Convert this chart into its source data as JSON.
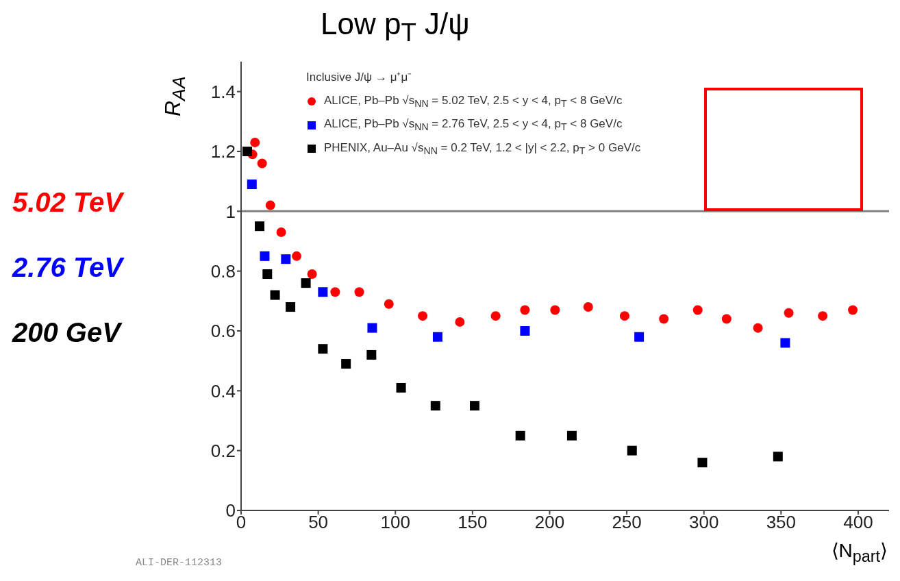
{
  "chart_data": {
    "type": "scatter",
    "title": "Low p$_{T}$ J/ψ",
    "xlabel": "⟨N$_{part}$⟩",
    "ylabel": "R$_{AA}$",
    "legend_title": "Inclusive J/ψ → μ⁺μ⁻",
    "legend": "top left",
    "xlim": [
      0,
      420
    ],
    "ylim": [
      0,
      1.5
    ],
    "xticks": [
      0,
      50,
      100,
      150,
      200,
      250,
      300,
      350,
      400
    ],
    "yticks": [
      0,
      0.2,
      0.4,
      0.6,
      0.8,
      1,
      1.2,
      1.4
    ],
    "series": [
      {
        "name": "ALICE, Pb–Pb √s$_{NN}$ = 5.02 TeV, 2.5 < y < 4, p$_{T}$ < 8 GeV/c",
        "color": "#ff0000",
        "marker": "circle",
        "x": [
          7.4,
          9,
          13.6,
          19,
          26,
          36,
          46,
          61,
          76.6,
          95.8,
          117.7,
          141.8,
          165,
          184,
          203.5,
          225,
          248.6,
          274,
          296,
          314.7,
          335,
          355,
          377,
          396.5
        ],
        "values": [
          1.19,
          1.23,
          1.16,
          1.02,
          0.93,
          0.85,
          0.79,
          0.73,
          0.73,
          0.69,
          0.65,
          0.63,
          0.65,
          0.67,
          0.67,
          0.68,
          0.65,
          0.64,
          0.67,
          0.64,
          0.61,
          0.66,
          0.65,
          0.67
        ]
      },
      {
        "name": "ALICE, Pb–Pb √s$_{NN}$ = 2.76 TeV, 2.5 < y < 4, p$_{T}$ < 8 GeV/c",
        "color": "#0000ff",
        "marker": "square",
        "x": [
          7,
          15.3,
          29,
          53,
          85,
          127.4,
          184,
          258,
          352.7
        ],
        "values": [
          1.09,
          0.85,
          0.84,
          0.73,
          0.61,
          0.58,
          0.6,
          0.58,
          0.56
        ]
      },
      {
        "name": "PHENIX, Au–Au √s$_{NN}$ = 0.2 TeV, 1.2 < |y| < 2.2, p$_{T}$ > 0 GeV/c",
        "color": "#000000",
        "marker": "square",
        "x": [
          4,
          12,
          17,
          22,
          32,
          42,
          53,
          68,
          84.5,
          103.7,
          126,
          151.4,
          181,
          214.4,
          253.4,
          299,
          348
        ],
        "values": [
          1.2,
          0.95,
          0.79,
          0.72,
          0.68,
          0.76,
          0.54,
          0.49,
          0.52,
          0.41,
          0.35,
          0.35,
          0.25,
          0.25,
          0.2,
          0.16,
          0.18
        ]
      }
    ],
    "ref_lines": [
      {
        "axis": "y",
        "value": 1,
        "color": "#808080"
      }
    ],
    "annotations": [
      "5.02 TeV",
      "2.76 TeV",
      "200 GeV",
      "ALI-DER-112313"
    ]
  }
}
